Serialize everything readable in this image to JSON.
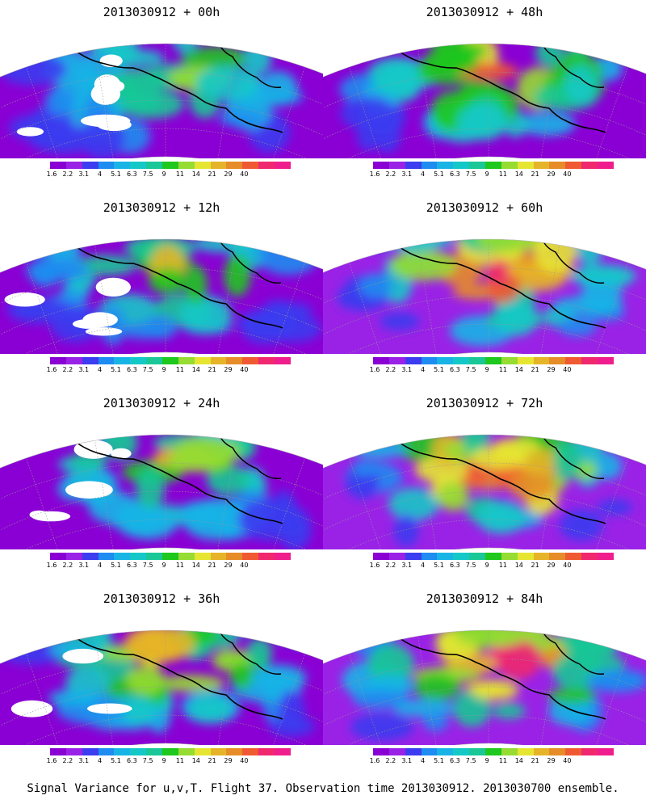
{
  "panels": [
    {
      "title": "2013030912 + 00h",
      "lead": 0
    },
    {
      "title": "2013030912 + 48h",
      "lead": 48
    },
    {
      "title": "2013030912 + 12h",
      "lead": 12
    },
    {
      "title": "2013030912 + 60h",
      "lead": 60
    },
    {
      "title": "2013030912 + 24h",
      "lead": 24
    },
    {
      "title": "2013030912 + 72h",
      "lead": 72
    },
    {
      "title": "2013030912 + 36h",
      "lead": 36
    },
    {
      "title": "2013030912 + 84h",
      "lead": 84
    }
  ],
  "colorbar": {
    "labels": [
      "1.6",
      "2.2",
      "3.1",
      "4",
      "5.1",
      "6.3",
      "7.5",
      "9",
      "11",
      "14",
      "21",
      "29",
      "40"
    ],
    "colors": [
      "#8a00d4",
      "#9a22e6",
      "#3c3cf0",
      "#1e8cf0",
      "#19b4e6",
      "#14c8c8",
      "#19c896",
      "#1ec81e",
      "#96dc32",
      "#e6e632",
      "#e6b428",
      "#e68c28",
      "#f05a32",
      "#f0286e",
      "#f01e8c"
    ]
  },
  "caption": "Signal Variance for u,v,T. Flight 37. Observation time 2013030912. 2013030700 ensemble."
}
